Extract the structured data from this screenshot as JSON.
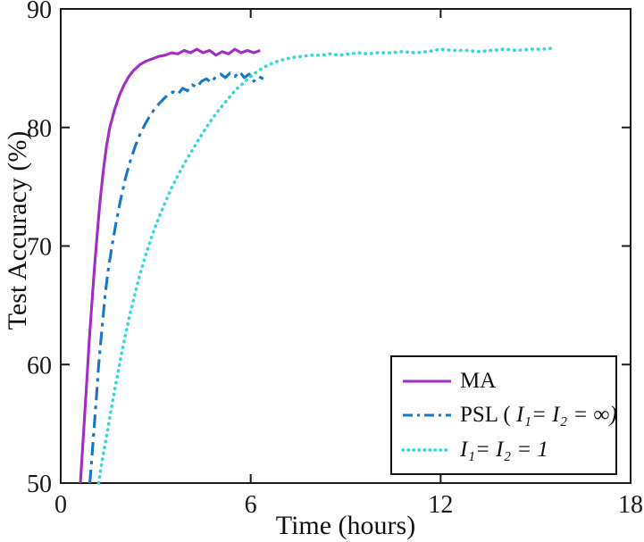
{
  "figure": {
    "background": "#ffffff",
    "axis_color": "#1a1a1a"
  },
  "chart_data": {
    "type": "line",
    "title": "",
    "xlabel": "Time (hours)",
    "ylabel": "Test Accuracy (%)",
    "xlim": [
      0,
      18
    ],
    "ylim": [
      50,
      90
    ],
    "x_ticks": [
      0,
      6,
      12,
      18
    ],
    "y_ticks": [
      50,
      60,
      70,
      80,
      90
    ],
    "grid": false,
    "legend_position": "lower right",
    "series": [
      {
        "name": "MA",
        "color": "#a32cc4",
        "style": "solid",
        "points": [
          [
            0.62,
            50
          ],
          [
            0.68,
            52.5
          ],
          [
            0.75,
            55.5
          ],
          [
            0.82,
            58.5
          ],
          [
            0.9,
            62
          ],
          [
            0.98,
            65
          ],
          [
            1.06,
            68
          ],
          [
            1.15,
            71
          ],
          [
            1.25,
            74
          ],
          [
            1.35,
            76.5
          ],
          [
            1.45,
            78.5
          ],
          [
            1.55,
            80
          ],
          [
            1.7,
            81.5
          ],
          [
            1.85,
            82.7
          ],
          [
            2.0,
            83.6
          ],
          [
            2.15,
            84.3
          ],
          [
            2.3,
            84.8
          ],
          [
            2.5,
            85.3
          ],
          [
            2.7,
            85.6
          ],
          [
            2.9,
            85.8
          ],
          [
            3.1,
            86.0
          ],
          [
            3.3,
            86.1
          ],
          [
            3.5,
            86.3
          ],
          [
            3.7,
            86.2
          ],
          [
            3.9,
            86.5
          ],
          [
            4.1,
            86.3
          ],
          [
            4.3,
            86.6
          ],
          [
            4.5,
            86.3
          ],
          [
            4.7,
            86.5
          ],
          [
            4.9,
            86.1
          ],
          [
            5.1,
            86.4
          ],
          [
            5.3,
            86.2
          ],
          [
            5.5,
            86.6
          ],
          [
            5.7,
            86.3
          ],
          [
            5.9,
            86.5
          ],
          [
            6.1,
            86.3
          ],
          [
            6.3,
            86.5
          ]
        ]
      },
      {
        "name": "PSL ( I₁= I₂ = ∞)",
        "color": "#1878c8",
        "style": "dashdot",
        "points": [
          [
            0.92,
            50
          ],
          [
            0.98,
            52
          ],
          [
            1.05,
            54.5
          ],
          [
            1.12,
            57
          ],
          [
            1.2,
            60
          ],
          [
            1.3,
            63
          ],
          [
            1.4,
            65.8
          ],
          [
            1.5,
            68
          ],
          [
            1.62,
            70
          ],
          [
            1.75,
            72
          ],
          [
            1.9,
            74
          ],
          [
            2.05,
            75.8
          ],
          [
            2.2,
            77.2
          ],
          [
            2.35,
            78.4
          ],
          [
            2.5,
            79.4
          ],
          [
            2.65,
            80.2
          ],
          [
            2.8,
            80.9
          ],
          [
            2.95,
            81.5
          ],
          [
            3.1,
            82.0
          ],
          [
            3.25,
            82.4
          ],
          [
            3.4,
            82.8
          ],
          [
            3.55,
            83.0
          ],
          [
            3.7,
            82.8
          ],
          [
            3.85,
            83.3
          ],
          [
            4.0,
            83.1
          ],
          [
            4.15,
            83.6
          ],
          [
            4.3,
            83.4
          ],
          [
            4.45,
            83.9
          ],
          [
            4.6,
            84.1
          ],
          [
            4.75,
            83.8
          ],
          [
            4.9,
            84.3
          ],
          [
            5.05,
            84.5
          ],
          [
            5.2,
            84.2
          ],
          [
            5.35,
            84.6
          ],
          [
            5.5,
            84.3
          ],
          [
            5.65,
            84.7
          ],
          [
            5.8,
            84.2
          ],
          [
            5.95,
            84.5
          ],
          [
            6.1,
            83.9
          ],
          [
            6.25,
            84.3
          ],
          [
            6.4,
            84.1
          ]
        ]
      },
      {
        "name": "I₁= I₂ = 1",
        "color": "#38d8d8",
        "style": "dotted",
        "points": [
          [
            1.2,
            50
          ],
          [
            1.3,
            51.8
          ],
          [
            1.45,
            54
          ],
          [
            1.6,
            56.3
          ],
          [
            1.75,
            58.5
          ],
          [
            1.9,
            60.6
          ],
          [
            2.05,
            62.6
          ],
          [
            2.2,
            64.4
          ],
          [
            2.35,
            66
          ],
          [
            2.5,
            67.6
          ],
          [
            2.7,
            69.4
          ],
          [
            2.9,
            71
          ],
          [
            3.1,
            72.4
          ],
          [
            3.3,
            73.7
          ],
          [
            3.5,
            74.9
          ],
          [
            3.75,
            76.2
          ],
          [
            4.0,
            77.4
          ],
          [
            4.25,
            78.5
          ],
          [
            4.5,
            79.6
          ],
          [
            4.75,
            80.6
          ],
          [
            5.0,
            81.5
          ],
          [
            5.25,
            82.3
          ],
          [
            5.5,
            83.1
          ],
          [
            5.75,
            83.7
          ],
          [
            6.0,
            84.3
          ],
          [
            6.25,
            84.8
          ],
          [
            6.5,
            85.2
          ],
          [
            6.75,
            85.5
          ],
          [
            7.0,
            85.7
          ],
          [
            7.3,
            85.9
          ],
          [
            7.6,
            86.0
          ],
          [
            7.9,
            86.1
          ],
          [
            8.2,
            86.1
          ],
          [
            8.5,
            86.2
          ],
          [
            8.8,
            86.1
          ],
          [
            9.1,
            86.2
          ],
          [
            9.4,
            86.3
          ],
          [
            9.7,
            86.2
          ],
          [
            10.0,
            86.3
          ],
          [
            10.4,
            86.3
          ],
          [
            10.8,
            86.4
          ],
          [
            11.2,
            86.3
          ],
          [
            11.6,
            86.4
          ],
          [
            12.0,
            86.6
          ],
          [
            12.4,
            86.5
          ],
          [
            12.8,
            86.5
          ],
          [
            13.2,
            86.4
          ],
          [
            13.6,
            86.5
          ],
          [
            14.0,
            86.6
          ],
          [
            14.4,
            86.5
          ],
          [
            14.8,
            86.6
          ],
          [
            15.2,
            86.6
          ],
          [
            15.6,
            86.7
          ]
        ]
      }
    ]
  },
  "legend": {
    "items": [
      {
        "pre": "MA",
        "math": "",
        "series": 0
      },
      {
        "pre": "PSL ( ",
        "math": "I₁= I₂ = ∞)",
        "series": 1
      },
      {
        "pre": "",
        "math": "I₁= I₂ = 1",
        "series": 2
      }
    ]
  }
}
